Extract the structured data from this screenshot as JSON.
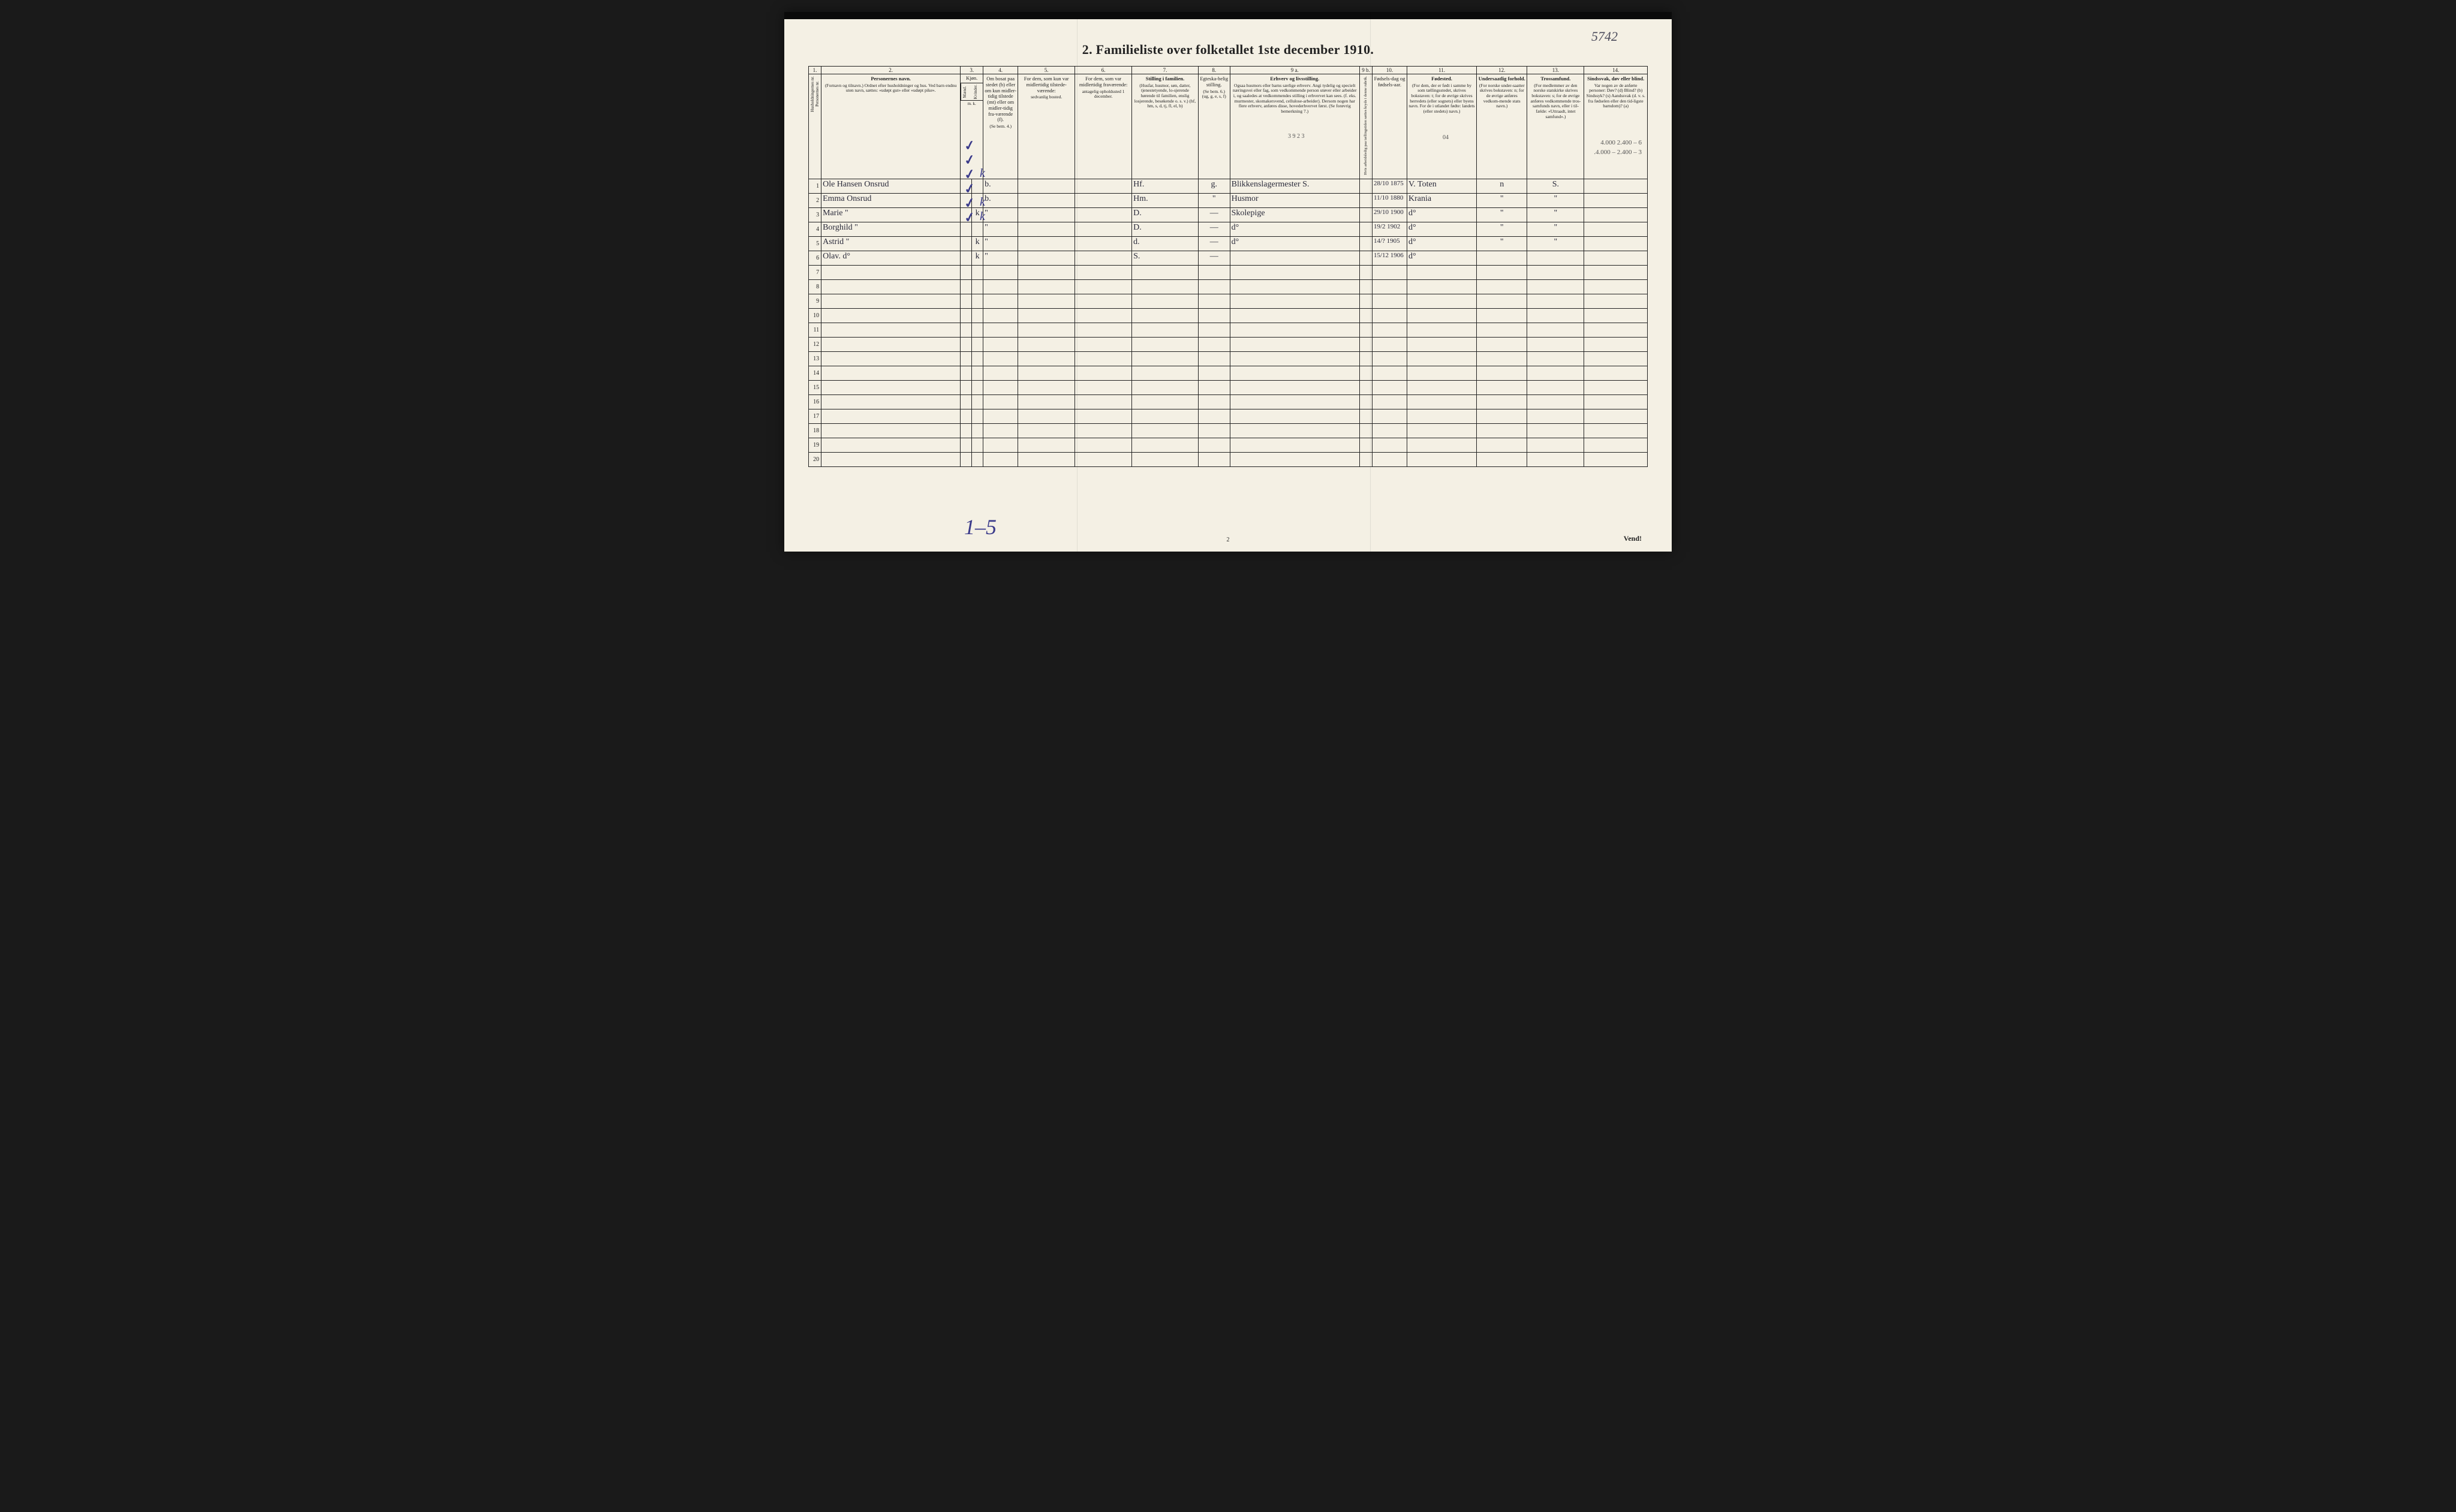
{
  "title": "2.  Familieliste over folketallet 1ste december 1910.",
  "topRightNote": "5742",
  "pageNumber": "2",
  "vend": "Vend!",
  "handAnnotation": "1–5",
  "colNumbers": [
    "1.",
    "2.",
    "3.",
    "4.",
    "5.",
    "6.",
    "7.",
    "8.",
    "9 a.",
    "9 b.",
    "10.",
    "11.",
    "12.",
    "13.",
    "14."
  ],
  "headers": {
    "c2": {
      "title": "Personernes navn.",
      "sub": "(Fornavn og tilnavn.)\nOrdnet efter husholdninger og hus.\nVed barn endnu uten navn, sættes: «udøpt gut» eller «udøpt pike»."
    },
    "c3": {
      "title": "Kjøn.",
      "m": "Mænd.",
      "k": "Kvinder.",
      "mk": "m.  k."
    },
    "c4": {
      "title": "Om bosat paa stedet (b) eller om kun midler-tidig tilstede (mt) eller om midler-tidig fra-værende (f).",
      "sub": "(Se bem. 4.)"
    },
    "c5": {
      "title": "For dem, som kun var midlertidig tilstede-værende:",
      "sub": "sedvanlig bosted."
    },
    "c6": {
      "title": "For dem, som var midlertidig fraværende:",
      "sub": "antagelig opholdssted 1 december."
    },
    "c7": {
      "title": "Stilling i familien.",
      "sub": "(Husfar, husmor, søn, datter, tjenestetyende, lo-sjerende hørende til familien, enslig losjerende, besøkende o. s. v.)\n(hf, hm, s, d, tj, fl, el, b)"
    },
    "c8": {
      "title": "Egteska-belig stilling.",
      "sub": "(Se bem. 6.)\n(ug, g, e, s, f)"
    },
    "c9a": {
      "title": "Erhverv og livsstilling.",
      "sub": "Ogsaa husmors eller barns særlige erhverv. Angi tydelig og specielt næringsvei eller fag, som vedkommende person utøver eller arbeider i, og saaledes at vedkommendes stilling i erhvervet kan sees. (f. eks. murmester, skomakersvend, cellulose-arbeider). Dersom nogen har flere erhverv, anføres disse, hovederhvervet først.\n(Se forøvrig bemerkning 7.)"
    },
    "c9b": {
      "title": "Hvis arbeidsledig paa tællingstiden sættes kryds i denne rubrik."
    },
    "c10": {
      "title": "Fødsels-dag og fødsels-aar."
    },
    "c11": {
      "title": "Fødested.",
      "sub": "(For dem, der er født i samme by som tællingsstedet, skrives bokstaven: t; for de øvrige skrives herredets (eller sognets) eller byens navn. For de i utlandet fødte: landets (eller stedets) navn.)"
    },
    "c12": {
      "title": "Undersaatlig forhold.",
      "sub": "(For norske under-saatter skrives bokstaven: n; for de øvrige anføres vedkom-mende stats navn.)"
    },
    "c13": {
      "title": "Trossamfund.",
      "sub": "(For medlemmer av den norske statskirke skrives bokstaven: s; for de øvrige anføres vedkommende tros-samfunds navn, eller i til-fælde: «Uttraadt, intet samfund».)"
    },
    "c14": {
      "title": "Sindssvak, døv eller blind.",
      "sub": "Var nogen av de anførte personer:\nDøv?       (d)\nBlind?     (b)\nSindssyk? (s)\nAandssvak (d. v. s. fra fødselen eller den tid-ligste barndom)? (a)"
    }
  },
  "rows": [
    {
      "num": "1",
      "name": "Ole Hansen Onsrud",
      "m": "",
      "k": "",
      "c4": "b.",
      "c7": "Hf.",
      "c8": "g.",
      "c9a": "Blikkenslagermester   S.",
      "c10": "28/10 1875",
      "c11": "V. Toten",
      "c12": "n",
      "c13": "S."
    },
    {
      "num": "2",
      "name": "Emma Onsrud",
      "m": "",
      "k": "",
      "c4": "b.",
      "c7": "Hm.",
      "c8": "\"",
      "c9a": "Husmor",
      "c10": "11/10 1880",
      "c11": "Krania",
      "c12": "\"",
      "c13": "\""
    },
    {
      "num": "3",
      "name": "Marie      \"",
      "m": "",
      "k": "k",
      "c4": "\"",
      "c7": "D.",
      "c8": "—",
      "c9a": "Skolepige",
      "c10": "29/10 1900",
      "c11": "d°",
      "c12": "\"",
      "c13": "\""
    },
    {
      "num": "4",
      "name": "Borghild   \"",
      "m": "",
      "k": "",
      "c4": "\"",
      "c7": "D.",
      "c8": "—",
      "c9a": "d°",
      "c10": "19/2 1902",
      "c11": "d°",
      "c12": "\"",
      "c13": "\""
    },
    {
      "num": "5",
      "name": "Astrid     \"",
      "m": "",
      "k": "k",
      "c4": "\"",
      "c7": "d.",
      "c8": "—",
      "c9a": "d°",
      "c10": "14/? 1905",
      "c11": "d°",
      "c12": "\"",
      "c13": "\""
    },
    {
      "num": "6",
      "name": "Olav.      d°",
      "m": "",
      "k": "k",
      "c4": "\"",
      "c7": "S.",
      "c8": "—",
      "c9a": "",
      "c10": "15/12 1906",
      "c11": "d°",
      "c12": "",
      "c13": ""
    }
  ],
  "emptyRowStart": 7,
  "emptyRowEnd": 20,
  "marginNotes": [
    "4.000   2.400 – 6",
    ".4.000 – 2.400 – 3"
  ],
  "smallNote9a": "3 9 2 3",
  "smallNote11": "04",
  "colors": {
    "paper": "#f4f0e4",
    "ink": "#222222",
    "blueInk": "#3a3a8a",
    "border": "#1a1a1a"
  },
  "fonts": {
    "body": "Times New Roman",
    "handwriting": "cursive",
    "titleSize": 22,
    "headerSize": 8.5,
    "cellSize": 14
  }
}
